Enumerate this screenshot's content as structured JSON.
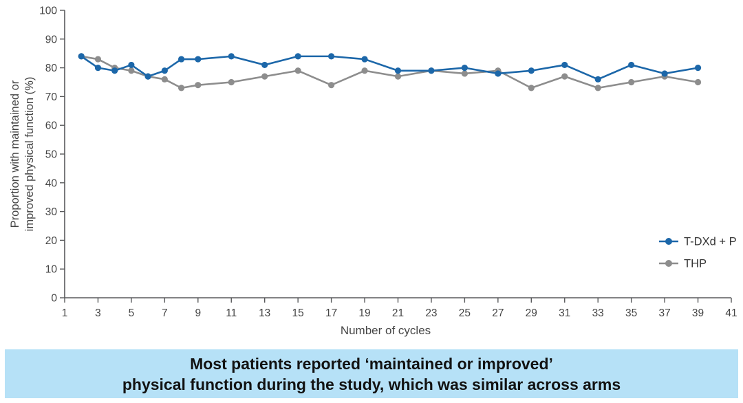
{
  "chart_data": {
    "type": "line",
    "title": "",
    "xlabel": "Number of cycles",
    "ylabel_lines": [
      "Proportion with maintained or",
      "improved physical function (%)"
    ],
    "xlim": [
      1,
      41
    ],
    "ylim": [
      0,
      100
    ],
    "x_ticks": [
      1,
      3,
      5,
      7,
      9,
      11,
      13,
      15,
      17,
      19,
      21,
      23,
      25,
      27,
      29,
      31,
      33,
      35,
      37,
      39,
      41
    ],
    "y_ticks": [
      0,
      10,
      20,
      30,
      40,
      50,
      60,
      70,
      80,
      90,
      100
    ],
    "grid": false,
    "legend_position": "right-bottom",
    "x": [
      2,
      3,
      4,
      5,
      6,
      7,
      8,
      9,
      11,
      13,
      15,
      17,
      19,
      21,
      23,
      25,
      27,
      29,
      31,
      33,
      35,
      37,
      39
    ],
    "series": [
      {
        "name": "T-DXd + P",
        "color": "#1c67a9",
        "values": [
          84,
          80,
          79,
          81,
          77,
          79,
          83,
          83,
          84,
          81,
          84,
          84,
          83,
          79,
          79,
          80,
          78,
          79,
          81,
          76,
          81,
          78,
          80
        ]
      },
      {
        "name": "THP",
        "color": "#8d8d8d",
        "values": [
          84,
          83,
          80,
          79,
          77,
          76,
          73,
          74,
          75,
          77,
          79,
          74,
          79,
          77,
          79,
          78,
          79,
          73,
          77,
          73,
          75,
          77,
          75
        ]
      }
    ],
    "axis_color": "#58595b",
    "tick_text_color": "#454545"
  },
  "caption": {
    "line1": "Most patients reported ‘maintained or improved’",
    "line2": "physical function during the study, which was similar across arms",
    "background_color": "#b6e1f7",
    "text_color": "#121212"
  }
}
